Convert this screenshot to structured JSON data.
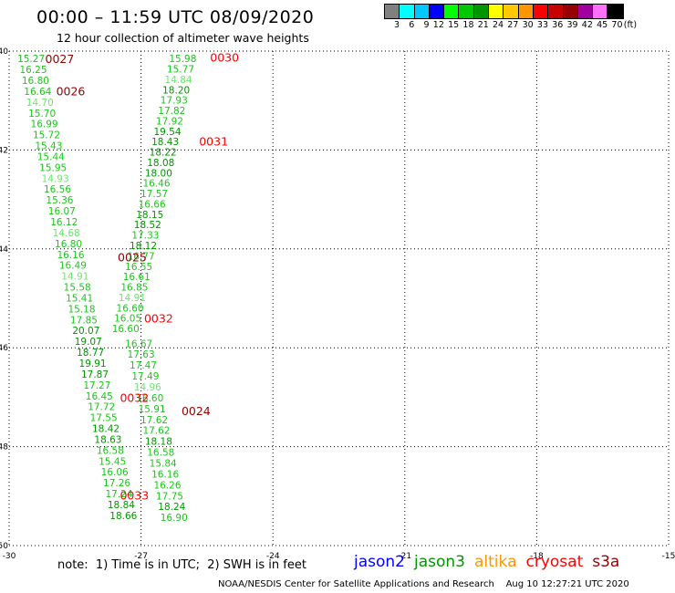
{
  "title": "00:00 – 11:59 UTC 08/09/2020",
  "subtitle": "12 hour collection of altimeter wave heights",
  "legend": {
    "unit": "(ft)",
    "colors": [
      "#808080",
      "#00ffff",
      "#00c8ff",
      "#0000ff",
      "#00ff00",
      "#00c800",
      "#009600",
      "#ffff00",
      "#ffc800",
      "#ff9600",
      "#ff0000",
      "#c80000",
      "#960000",
      "#a000a0",
      "#ff70ff",
      "#000000"
    ],
    "labels": [
      "3",
      "6",
      "9",
      "12",
      "15",
      "18",
      "21",
      "24",
      "27",
      "30",
      "33",
      "36",
      "39",
      "42",
      "45",
      "70"
    ]
  },
  "axes": {
    "lon_ticks": [
      "-30",
      "-27",
      "-24",
      "-21",
      "-18",
      "-15"
    ],
    "lat_ticks": [
      "-40",
      "-42",
      "-44",
      "-46",
      "-48",
      "-50"
    ],
    "lon_range": [
      -30,
      -15
    ],
    "lat_range": [
      -50,
      -40
    ]
  },
  "colors": {
    "light": "#6ee66e",
    "mid": "#18c818",
    "dark": "#009600",
    "time_red": "#ff0000",
    "time_dark": "#960000"
  },
  "tracks": [
    {
      "name": "track-west",
      "points": [
        {
          "lon": -29.5,
          "lat": -40.15,
          "v": "15.27",
          "c": "mid"
        },
        {
          "lon": -29.45,
          "lat": -40.37,
          "v": "16.25",
          "c": "mid"
        },
        {
          "lon": -29.4,
          "lat": -40.59,
          "v": "16.80",
          "c": "mid"
        },
        {
          "lon": -29.35,
          "lat": -40.81,
          "v": "16.64",
          "c": "mid"
        },
        {
          "lon": -29.3,
          "lat": -41.03,
          "v": "14.70",
          "c": "light"
        },
        {
          "lon": -29.25,
          "lat": -41.25,
          "v": "15.70",
          "c": "mid"
        },
        {
          "lon": -29.2,
          "lat": -41.47,
          "v": "16.99",
          "c": "mid"
        },
        {
          "lon": -29.15,
          "lat": -41.69,
          "v": "15.72",
          "c": "mid"
        },
        {
          "lon": -29.1,
          "lat": -41.91,
          "v": "15.43",
          "c": "mid"
        },
        {
          "lon": -29.05,
          "lat": -42.13,
          "v": "15.44",
          "c": "mid"
        },
        {
          "lon": -29.0,
          "lat": -42.35,
          "v": "15.95",
          "c": "mid"
        },
        {
          "lon": -28.95,
          "lat": -42.57,
          "v": "14.93",
          "c": "light"
        },
        {
          "lon": -28.9,
          "lat": -42.79,
          "v": "16.56",
          "c": "mid"
        },
        {
          "lon": -28.85,
          "lat": -43.01,
          "v": "15.36",
          "c": "mid"
        },
        {
          "lon": -28.8,
          "lat": -43.23,
          "v": "16.07",
          "c": "mid"
        },
        {
          "lon": -28.75,
          "lat": -43.45,
          "v": "16.12",
          "c": "mid"
        },
        {
          "lon": -28.7,
          "lat": -43.67,
          "v": "14.68",
          "c": "light"
        },
        {
          "lon": -28.65,
          "lat": -43.89,
          "v": "16.80",
          "c": "mid"
        },
        {
          "lon": -28.6,
          "lat": -44.11,
          "v": "16.16",
          "c": "mid"
        },
        {
          "lon": -28.55,
          "lat": -44.33,
          "v": "16.49",
          "c": "mid"
        },
        {
          "lon": -28.5,
          "lat": -44.55,
          "v": "14.91",
          "c": "light"
        },
        {
          "lon": -28.45,
          "lat": -44.77,
          "v": "15.58",
          "c": "mid"
        },
        {
          "lon": -28.4,
          "lat": -44.99,
          "v": "15.41",
          "c": "mid"
        },
        {
          "lon": -28.35,
          "lat": -45.21,
          "v": "15.18",
          "c": "mid"
        },
        {
          "lon": -28.3,
          "lat": -45.43,
          "v": "17.85",
          "c": "mid"
        },
        {
          "lon": -28.25,
          "lat": -45.65,
          "v": "20.07",
          "c": "dark"
        },
        {
          "lon": -28.2,
          "lat": -45.87,
          "v": "19.07",
          "c": "dark"
        },
        {
          "lon": -28.15,
          "lat": -46.09,
          "v": "18.77",
          "c": "dark"
        },
        {
          "lon": -28.1,
          "lat": -46.31,
          "v": "19.91",
          "c": "dark"
        },
        {
          "lon": -28.05,
          "lat": -46.53,
          "v": "17.87",
          "c": "dark"
        },
        {
          "lon": -28.0,
          "lat": -46.75,
          "v": "17.27",
          "c": "mid"
        },
        {
          "lon": -27.95,
          "lat": -46.97,
          "v": "16.45",
          "c": "mid"
        },
        {
          "lon": -27.9,
          "lat": -47.19,
          "v": "17.72",
          "c": "mid"
        },
        {
          "lon": -27.85,
          "lat": -47.41,
          "v": "17.55",
          "c": "mid"
        },
        {
          "lon": -27.8,
          "lat": -47.63,
          "v": "18.42",
          "c": "dark"
        },
        {
          "lon": -27.75,
          "lat": -47.85,
          "v": "18.63",
          "c": "dark"
        },
        {
          "lon": -27.7,
          "lat": -48.07,
          "v": "16.58",
          "c": "mid"
        },
        {
          "lon": -27.65,
          "lat": -48.29,
          "v": "15.45",
          "c": "mid"
        },
        {
          "lon": -27.6,
          "lat": -48.51,
          "v": "16.06",
          "c": "mid"
        },
        {
          "lon": -27.55,
          "lat": -48.73,
          "v": "17.26",
          "c": "mid"
        },
        {
          "lon": -27.5,
          "lat": -48.95,
          "v": "17.24",
          "c": "mid"
        },
        {
          "lon": -27.45,
          "lat": -49.17,
          "v": "18.84",
          "c": "dark"
        },
        {
          "lon": -27.4,
          "lat": -49.39,
          "v": "18.66",
          "c": "dark"
        }
      ]
    },
    {
      "name": "track-north",
      "points": [
        {
          "lon": -26.05,
          "lat": -40.15,
          "v": "15.98",
          "c": "mid"
        },
        {
          "lon": -26.1,
          "lat": -40.36,
          "v": "15.77",
          "c": "mid"
        },
        {
          "lon": -26.15,
          "lat": -40.57,
          "v": "14.84",
          "c": "light"
        },
        {
          "lon": -26.2,
          "lat": -40.78,
          "v": "18.20",
          "c": "dark"
        },
        {
          "lon": -26.25,
          "lat": -40.99,
          "v": "17.93",
          "c": "mid"
        },
        {
          "lon": -26.3,
          "lat": -41.2,
          "v": "17.82",
          "c": "mid"
        },
        {
          "lon": -26.35,
          "lat": -41.41,
          "v": "17.92",
          "c": "mid"
        },
        {
          "lon": -26.4,
          "lat": -41.62,
          "v": "19.54",
          "c": "dark"
        },
        {
          "lon": -26.45,
          "lat": -41.83,
          "v": "18.43",
          "c": "dark"
        },
        {
          "lon": -26.5,
          "lat": -42.04,
          "v": "18.22",
          "c": "dark"
        },
        {
          "lon": -26.55,
          "lat": -42.25,
          "v": "18.08",
          "c": "dark"
        },
        {
          "lon": -26.6,
          "lat": -42.46,
          "v": "18.00",
          "c": "dark"
        },
        {
          "lon": -26.65,
          "lat": -42.67,
          "v": "16.46",
          "c": "mid"
        },
        {
          "lon": -26.7,
          "lat": -42.88,
          "v": "17.57",
          "c": "mid"
        },
        {
          "lon": -26.75,
          "lat": -43.09,
          "v": "16.66",
          "c": "mid"
        },
        {
          "lon": -26.8,
          "lat": -43.3,
          "v": "18.15",
          "c": "dark"
        },
        {
          "lon": -26.85,
          "lat": -43.51,
          "v": "18.52",
          "c": "dark"
        },
        {
          "lon": -26.9,
          "lat": -43.72,
          "v": "17.33",
          "c": "mid"
        },
        {
          "lon": -26.95,
          "lat": -43.93,
          "v": "18.12",
          "c": "dark"
        },
        {
          "lon": -27.0,
          "lat": -44.14,
          "v": "16.77",
          "c": "mid"
        },
        {
          "lon": -27.05,
          "lat": -44.35,
          "v": "16.55",
          "c": "mid"
        },
        {
          "lon": -27.1,
          "lat": -44.56,
          "v": "16.61",
          "c": "mid"
        },
        {
          "lon": -27.15,
          "lat": -44.77,
          "v": "16.85",
          "c": "mid"
        },
        {
          "lon": -27.2,
          "lat": -44.98,
          "v": "14.91",
          "c": "light"
        },
        {
          "lon": -27.25,
          "lat": -45.19,
          "v": "16.60",
          "c": "mid"
        },
        {
          "lon": -27.3,
          "lat": -45.4,
          "v": "16.05",
          "c": "mid"
        },
        {
          "lon": -27.35,
          "lat": -45.61,
          "v": "16.60",
          "c": "mid"
        }
      ]
    },
    {
      "name": "track-south",
      "points": [
        {
          "lon": -27.05,
          "lat": -45.91,
          "v": "16.67",
          "c": "mid"
        },
        {
          "lon": -27.0,
          "lat": -46.13,
          "v": "17.63",
          "c": "mid"
        },
        {
          "lon": -26.95,
          "lat": -46.35,
          "v": "17.47",
          "c": "mid"
        },
        {
          "lon": -26.9,
          "lat": -46.57,
          "v": "17.49",
          "c": "mid"
        },
        {
          "lon": -26.85,
          "lat": -46.79,
          "v": "14.96",
          "c": "light"
        },
        {
          "lon": -26.8,
          "lat": -47.01,
          "v": "16.60",
          "c": "mid"
        },
        {
          "lon": -26.75,
          "lat": -47.23,
          "v": "15.91",
          "c": "mid"
        },
        {
          "lon": -26.7,
          "lat": -47.45,
          "v": "17.62",
          "c": "mid"
        },
        {
          "lon": -26.65,
          "lat": -47.67,
          "v": "17.62",
          "c": "mid"
        },
        {
          "lon": -26.6,
          "lat": -47.89,
          "v": "18.18",
          "c": "dark"
        },
        {
          "lon": -26.55,
          "lat": -48.11,
          "v": "16.58",
          "c": "mid"
        },
        {
          "lon": -26.5,
          "lat": -48.33,
          "v": "15.84",
          "c": "mid"
        },
        {
          "lon": -26.45,
          "lat": -48.55,
          "v": "16.16",
          "c": "mid"
        },
        {
          "lon": -26.4,
          "lat": -48.77,
          "v": "16.26",
          "c": "mid"
        },
        {
          "lon": -26.35,
          "lat": -48.99,
          "v": "17.75",
          "c": "mid"
        },
        {
          "lon": -26.3,
          "lat": -49.21,
          "v": "18.24",
          "c": "dark"
        },
        {
          "lon": -26.25,
          "lat": -49.43,
          "v": "16.90",
          "c": "mid"
        }
      ]
    }
  ],
  "time_labels": [
    {
      "t": "0027",
      "lon": -28.85,
      "lat": -40.15,
      "c": "time_dark"
    },
    {
      "t": "0026",
      "lon": -28.6,
      "lat": -40.8,
      "c": "time_dark"
    },
    {
      "t": "0030",
      "lon": -25.1,
      "lat": -40.12,
      "c": "time_red"
    },
    {
      "t": "0031",
      "lon": -25.35,
      "lat": -41.82,
      "c": "time_red"
    },
    {
      "t": "0025",
      "lon": -27.2,
      "lat": -44.16,
      "c": "time_dark"
    },
    {
      "t": "0032",
      "lon": -26.6,
      "lat": -45.4,
      "c": "time_red"
    },
    {
      "t": "0032",
      "lon": -27.15,
      "lat": -47.0,
      "c": "time_red"
    },
    {
      "t": "0024",
      "lon": -25.75,
      "lat": -47.27,
      "c": "time_dark"
    },
    {
      "t": "0033",
      "lon": -27.15,
      "lat": -48.98,
      "c": "time_red"
    }
  ],
  "note": "note:  1) Time is in UTC;  2) SWH is in feet",
  "satellites": [
    {
      "name": "jason2",
      "color": "#0000ff"
    },
    {
      "name": "jason3",
      "color": "#009600"
    },
    {
      "name": "altika",
      "color": "#ff9600"
    },
    {
      "name": "cryosat",
      "color": "#ff0000"
    },
    {
      "name": "s3a",
      "color": "#960000"
    }
  ],
  "credit": "NOAA/NESDIS Center for Satellite Applications and Research    Aug 10 12:27:21 UTC 2020"
}
